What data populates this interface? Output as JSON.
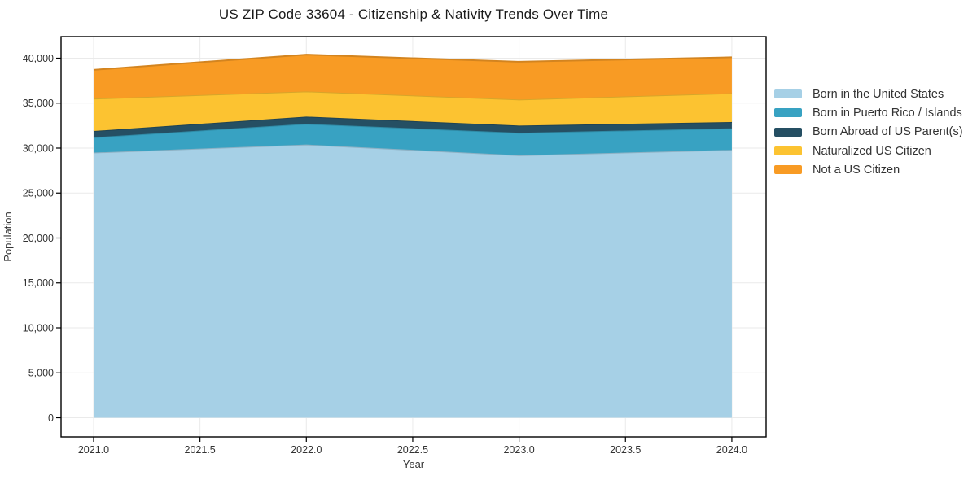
{
  "chart_data": {
    "type": "area",
    "stacked": true,
    "title": "US ZIP Code 33604 - Citizenship & Nativity Trends Over Time",
    "xlabel": "Year",
    "ylabel": "Population",
    "x": [
      2021,
      2022,
      2023,
      2024
    ],
    "series": [
      {
        "name": "Born in the United States",
        "color": "#a6d0e6",
        "values": [
          29500,
          30400,
          29200,
          29800
        ]
      },
      {
        "name": "Born in Puerto Rico / Islands",
        "color": "#38a2c2",
        "values": [
          1700,
          2300,
          2500,
          2400
        ]
      },
      {
        "name": "Born Abroad of US Parent(s)",
        "color": "#254f63",
        "values": [
          700,
          800,
          800,
          700
        ]
      },
      {
        "name": "Naturalized US Citizen",
        "color": "#fcc331",
        "values": [
          3600,
          2800,
          2900,
          3200
        ]
      },
      {
        "name": "Not a US Citizen",
        "color": "#f89b24",
        "values": [
          3200,
          4100,
          4200,
          4000
        ]
      }
    ],
    "totals": [
      38700,
      40400,
      39600,
      40100
    ],
    "xlim": [
      2020.847,
      2024.161
    ],
    "ylim": [
      -2127,
      42398
    ],
    "xticks": [
      2021.0,
      2021.5,
      2022.0,
      2022.5,
      2023.0,
      2023.5,
      2024.0
    ],
    "xtick_labels": [
      "2021.0",
      "2021.5",
      "2022.0",
      "2022.5",
      "2023.0",
      "2023.5",
      "2024.0"
    ],
    "yticks": [
      0,
      5000,
      10000,
      15000,
      20000,
      25000,
      30000,
      35000,
      40000
    ],
    "ytick_labels": [
      "0",
      "5,000",
      "10,000",
      "15,000",
      "20,000",
      "25,000",
      "30,000",
      "35,000",
      "40,000"
    ],
    "grid": true,
    "grid_color": "#eaeaea",
    "axis_border_color": "#000000",
    "legend_position": "right outside"
  }
}
